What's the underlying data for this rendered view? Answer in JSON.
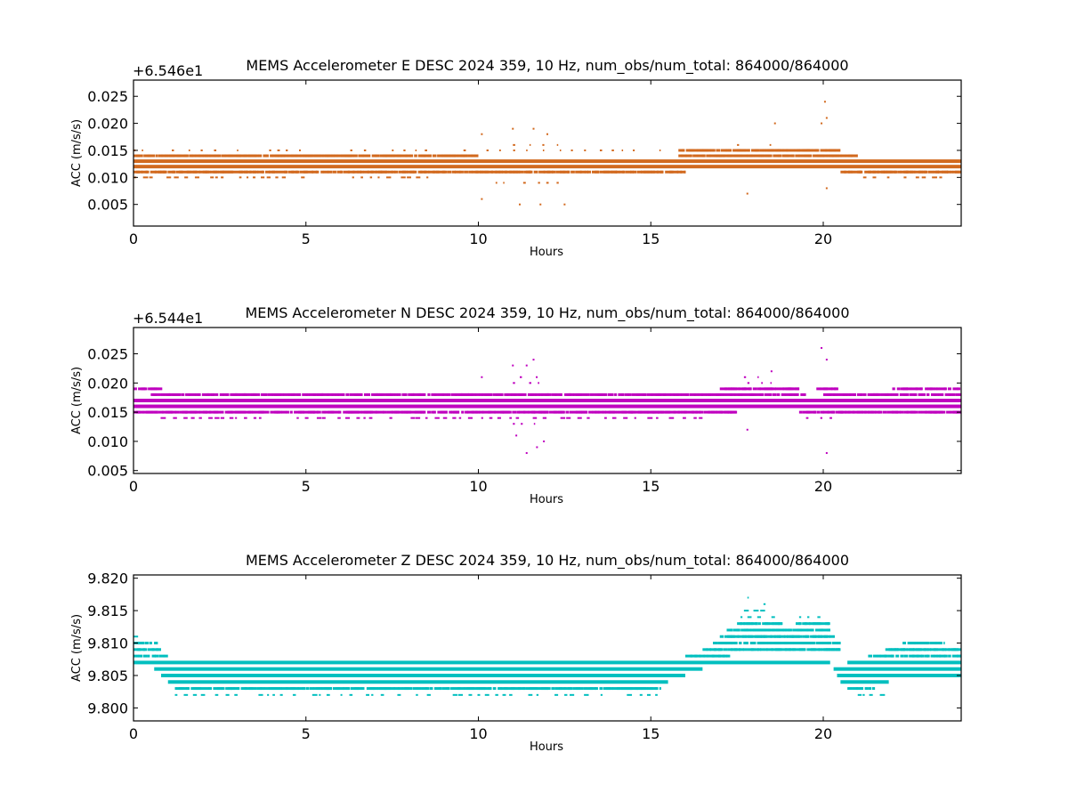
{
  "figure": {
    "background": "#ffffff"
  },
  "chart_data": [
    {
      "type": "scatter",
      "title": "MEMS Accelerometer E DESC 2024 359, 10 Hz, num_obs/num_total: 864000/864000",
      "xlabel": "Hours",
      "ylabel": "ACC (m/s/s)",
      "offset_text": "+6.546e1",
      "color": "#d2691e",
      "xlim": [
        0,
        24
      ],
      "ylim": [
        0.001,
        0.028
      ],
      "xticks": [
        0,
        5,
        10,
        15,
        20
      ],
      "xtick_labels": [
        "0",
        "5",
        "10",
        "15",
        "20"
      ],
      "yticks": [
        0.005,
        0.01,
        0.015,
        0.02,
        0.025
      ],
      "ytick_labels": [
        "0.005",
        "0.010",
        "0.015",
        "0.020",
        "0.025"
      ],
      "grid": false,
      "bands": [
        {
          "y": 0.013,
          "x": [
            [
              0,
              24
            ]
          ],
          "density": "solid"
        },
        {
          "y": 0.012,
          "x": [
            [
              0,
              24
            ]
          ],
          "density": "solid"
        },
        {
          "y": 0.011,
          "x": [
            [
              0,
              16
            ],
            [
              20.5,
              24
            ]
          ],
          "density": "dense"
        },
        {
          "y": 0.014,
          "x": [
            [
              0,
              10
            ],
            [
              15.8,
              21
            ]
          ],
          "density": "dense"
        },
        {
          "y": 0.01,
          "x": [
            [
              0,
              9.5
            ],
            [
              21,
              23.5
            ]
          ],
          "density": "sparse"
        },
        {
          "y": 0.015,
          "x": [
            [
              15.8,
              20.5
            ]
          ],
          "density": "dense"
        },
        {
          "y": 0.015,
          "x": [
            [
              0,
              15.5
            ]
          ],
          "density": "rare"
        },
        {
          "y": 0.016,
          "x": [
            [
              11,
              12.5
            ],
            [
              17.5,
              19
            ]
          ],
          "density": "rare"
        },
        {
          "y": 0.009,
          "x": [
            [
              10.5,
              12.5
            ]
          ],
          "density": "rare"
        }
      ],
      "outliers": [
        {
          "x": 10.1,
          "y": 0.018
        },
        {
          "x": 11.0,
          "y": 0.019
        },
        {
          "x": 11.6,
          "y": 0.019
        },
        {
          "x": 12.0,
          "y": 0.018
        },
        {
          "x": 11.2,
          "y": 0.005
        },
        {
          "x": 11.8,
          "y": 0.005
        },
        {
          "x": 12.5,
          "y": 0.005
        },
        {
          "x": 10.1,
          "y": 0.006
        },
        {
          "x": 18.6,
          "y": 0.02
        },
        {
          "x": 17.8,
          "y": 0.007
        },
        {
          "x": 20.05,
          "y": 0.024
        },
        {
          "x": 20.1,
          "y": 0.021
        },
        {
          "x": 19.95,
          "y": 0.02
        },
        {
          "x": 20.1,
          "y": 0.008
        }
      ]
    },
    {
      "type": "scatter",
      "title": "MEMS Accelerometer N DESC 2024 359, 10 Hz, num_obs/num_total: 864000/864000",
      "xlabel": "Hours",
      "ylabel": "ACC (m/s/s)",
      "offset_text": "+6.544e1",
      "color": "#bf00bf",
      "xlim": [
        0,
        24
      ],
      "ylim": [
        0.0045,
        0.0295
      ],
      "xticks": [
        0,
        5,
        10,
        15,
        20
      ],
      "xtick_labels": [
        "0",
        "5",
        "10",
        "15",
        "20"
      ],
      "yticks": [
        0.005,
        0.01,
        0.015,
        0.02,
        0.025
      ],
      "ytick_labels": [
        "0.005",
        "0.010",
        "0.015",
        "0.020",
        "0.025"
      ],
      "grid": false,
      "bands": [
        {
          "y": 0.017,
          "x": [
            [
              0,
              24
            ]
          ],
          "density": "solid"
        },
        {
          "y": 0.016,
          "x": [
            [
              0,
              24
            ]
          ],
          "density": "solid"
        },
        {
          "y": 0.015,
          "x": [
            [
              0,
              17.5
            ],
            [
              19.3,
              24
            ]
          ],
          "density": "dense"
        },
        {
          "y": 0.018,
          "x": [
            [
              0.5,
              19.5
            ],
            [
              20,
              24
            ]
          ],
          "density": "dense"
        },
        {
          "y": 0.014,
          "x": [
            [
              0.5,
              16.5
            ],
            [
              19.5,
              20.5
            ]
          ],
          "density": "sparse"
        },
        {
          "y": 0.019,
          "x": [
            [
              0,
              0.8
            ],
            [
              17,
              19.3
            ],
            [
              19.8,
              20.4
            ],
            [
              22,
              24
            ]
          ],
          "density": "dense"
        },
        {
          "y": 0.02,
          "x": [
            [
              17.8,
              19
            ],
            [
              11,
              12
            ]
          ],
          "density": "rare"
        },
        {
          "y": 0.021,
          "x": [
            [
              17.7,
              18.1
            ],
            [
              11.2,
              11.8
            ]
          ],
          "density": "rare"
        },
        {
          "y": 0.013,
          "x": [
            [
              11,
              12
            ]
          ],
          "density": "rare"
        }
      ],
      "outliers": [
        {
          "x": 10.1,
          "y": 0.021
        },
        {
          "x": 11.0,
          "y": 0.023
        },
        {
          "x": 11.6,
          "y": 0.024
        },
        {
          "x": 11.4,
          "y": 0.023
        },
        {
          "x": 11.1,
          "y": 0.011
        },
        {
          "x": 11.4,
          "y": 0.008
        },
        {
          "x": 11.7,
          "y": 0.009
        },
        {
          "x": 11.9,
          "y": 0.01
        },
        {
          "x": 18.5,
          "y": 0.022
        },
        {
          "x": 17.8,
          "y": 0.012
        },
        {
          "x": 19.95,
          "y": 0.026
        },
        {
          "x": 20.1,
          "y": 0.024
        },
        {
          "x": 20.1,
          "y": 0.008
        }
      ]
    },
    {
      "type": "scatter",
      "title": "MEMS Accelerometer Z DESC 2024 359, 10 Hz, num_obs/num_total: 864000/864000",
      "xlabel": "Hours",
      "ylabel": "ACC (m/s/s)",
      "offset_text": "",
      "color": "#00bfbf",
      "xlim": [
        0,
        24
      ],
      "ylim": [
        9.798,
        9.8205
      ],
      "xticks": [
        0,
        5,
        10,
        15,
        20
      ],
      "xtick_labels": [
        "0",
        "5",
        "10",
        "15",
        "20"
      ],
      "yticks": [
        9.8,
        9.805,
        9.81,
        9.815,
        9.82
      ],
      "ytick_labels": [
        "9.800",
        "9.805",
        "9.810",
        "9.815",
        "9.820"
      ],
      "grid": false,
      "bands": [
        {
          "y": 9.811,
          "x": [
            [
              0,
              0.3
            ]
          ],
          "density": "sparse"
        },
        {
          "y": 9.81,
          "x": [
            [
              0,
              0.7
            ],
            [
              22.3,
              23.5
            ]
          ],
          "density": "dense"
        },
        {
          "y": 9.809,
          "x": [
            [
              0,
              0.8
            ],
            [
              21.8,
              24
            ]
          ],
          "density": "dense"
        },
        {
          "y": 9.808,
          "x": [
            [
              0,
              1
            ],
            [
              16,
              17.3
            ],
            [
              21.3,
              24
            ]
          ],
          "density": "dense"
        },
        {
          "y": 9.807,
          "x": [
            [
              0,
              20.2
            ],
            [
              20.7,
              24
            ]
          ],
          "density": "solid"
        },
        {
          "y": 9.806,
          "x": [
            [
              0.6,
              16.5
            ],
            [
              20.3,
              24
            ]
          ],
          "density": "solid"
        },
        {
          "y": 9.805,
          "x": [
            [
              0.8,
              16
            ],
            [
              20.4,
              24
            ]
          ],
          "density": "solid"
        },
        {
          "y": 9.804,
          "x": [
            [
              1,
              15.5
            ],
            [
              20.5,
              21.9
            ]
          ],
          "density": "solid"
        },
        {
          "y": 9.803,
          "x": [
            [
              1.2,
              15.3
            ],
            [
              20.7,
              21.5
            ]
          ],
          "density": "dense"
        },
        {
          "y": 9.802,
          "x": [
            [
              1.2,
              15.3
            ],
            [
              21,
              21.8
            ]
          ],
          "density": "sparse"
        },
        {
          "y": 9.801,
          "x": [
            [
              1.6,
              1.9
            ]
          ],
          "density": "rare"
        },
        {
          "y": 9.809,
          "x": [
            [
              16.5,
              20.5
            ]
          ],
          "density": "dense"
        },
        {
          "y": 9.81,
          "x": [
            [
              16.8,
              20.5
            ]
          ],
          "density": "dense"
        },
        {
          "y": 9.811,
          "x": [
            [
              17,
              20.3
            ]
          ],
          "density": "dense"
        },
        {
          "y": 9.812,
          "x": [
            [
              17.2,
              20.2
            ]
          ],
          "density": "dense"
        },
        {
          "y": 9.813,
          "x": [
            [
              17.5,
              18.8
            ],
            [
              19.2,
              20.2
            ]
          ],
          "density": "dense"
        },
        {
          "y": 9.814,
          "x": [
            [
              17.6,
              18.6
            ],
            [
              19.3,
              20.1
            ]
          ],
          "density": "sparse"
        },
        {
          "y": 9.815,
          "x": [
            [
              17.7,
              18.4
            ]
          ],
          "density": "sparse"
        },
        {
          "y": 9.816,
          "x": [
            [
              18,
              18.4
            ]
          ],
          "density": "rare"
        },
        {
          "y": 9.817,
          "x": [
            [
              17.8,
              17.9
            ]
          ],
          "density": "rare"
        }
      ],
      "outliers": []
    }
  ]
}
